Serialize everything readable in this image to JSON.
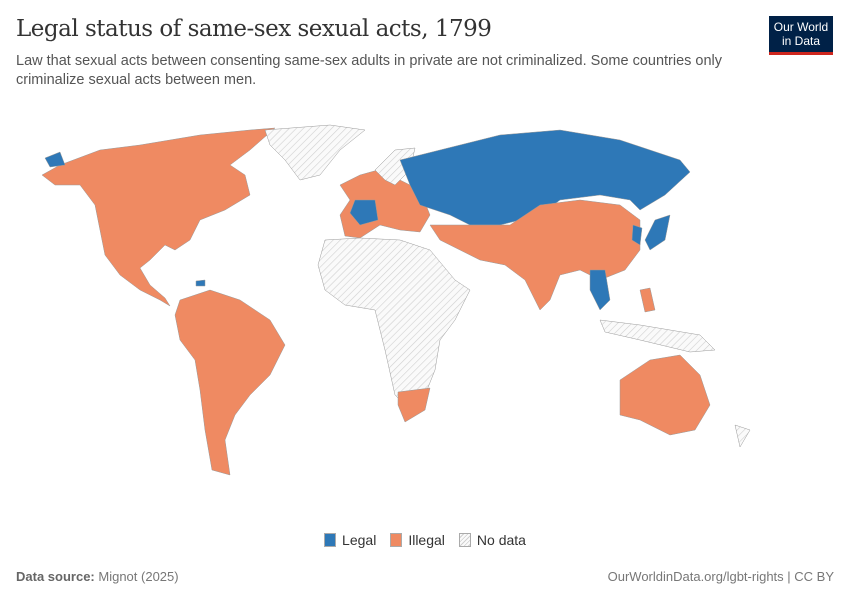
{
  "header": {
    "title": "Legal status of same-sex sexual acts, 1799",
    "subtitle": "Law that sexual acts between consenting same-sex adults in private are not criminalized. Some countries only criminalize sexual acts between men.",
    "logo_line1": "Our World",
    "logo_line2": "in Data"
  },
  "colors": {
    "legal": "#2e78b7",
    "illegal": "#ef8a62",
    "no_data": "#f2f2f2",
    "hatch": "#d0d0d0"
  },
  "legend": [
    {
      "label": "Legal",
      "key": "legal"
    },
    {
      "label": "Illegal",
      "key": "illegal"
    },
    {
      "label": "No data",
      "key": "no_data"
    }
  ],
  "map_data": {
    "year": 1799,
    "regions": [
      {
        "name": "North America",
        "status": "illegal"
      },
      {
        "name": "Alaska",
        "status": "legal"
      },
      {
        "name": "Greenland",
        "status": "no_data"
      },
      {
        "name": "Haiti",
        "status": "legal"
      },
      {
        "name": "South America",
        "status": "illegal"
      },
      {
        "name": "Western Europe",
        "status": "illegal"
      },
      {
        "name": "France",
        "status": "legal"
      },
      {
        "name": "Scandinavia",
        "status": "no_data"
      },
      {
        "name": "Russia and Central Asia",
        "status": "legal"
      },
      {
        "name": "Middle East, South and East Asia",
        "status": "illegal"
      },
      {
        "name": "Japan",
        "status": "legal"
      },
      {
        "name": "Korea",
        "status": "legal"
      },
      {
        "name": "Indochina",
        "status": "legal"
      },
      {
        "name": "Africa",
        "status": "no_data"
      },
      {
        "name": "South Africa",
        "status": "illegal"
      },
      {
        "name": "Australia",
        "status": "illegal"
      },
      {
        "name": "Philippines",
        "status": "illegal"
      },
      {
        "name": "Indonesia",
        "status": "no_data"
      },
      {
        "name": "New Zealand",
        "status": "no_data"
      }
    ]
  },
  "footer": {
    "source_label": "Data source:",
    "source": "Mignot (2025)",
    "url": "OurWorldinData.org/lgbt-rights | CC BY"
  }
}
